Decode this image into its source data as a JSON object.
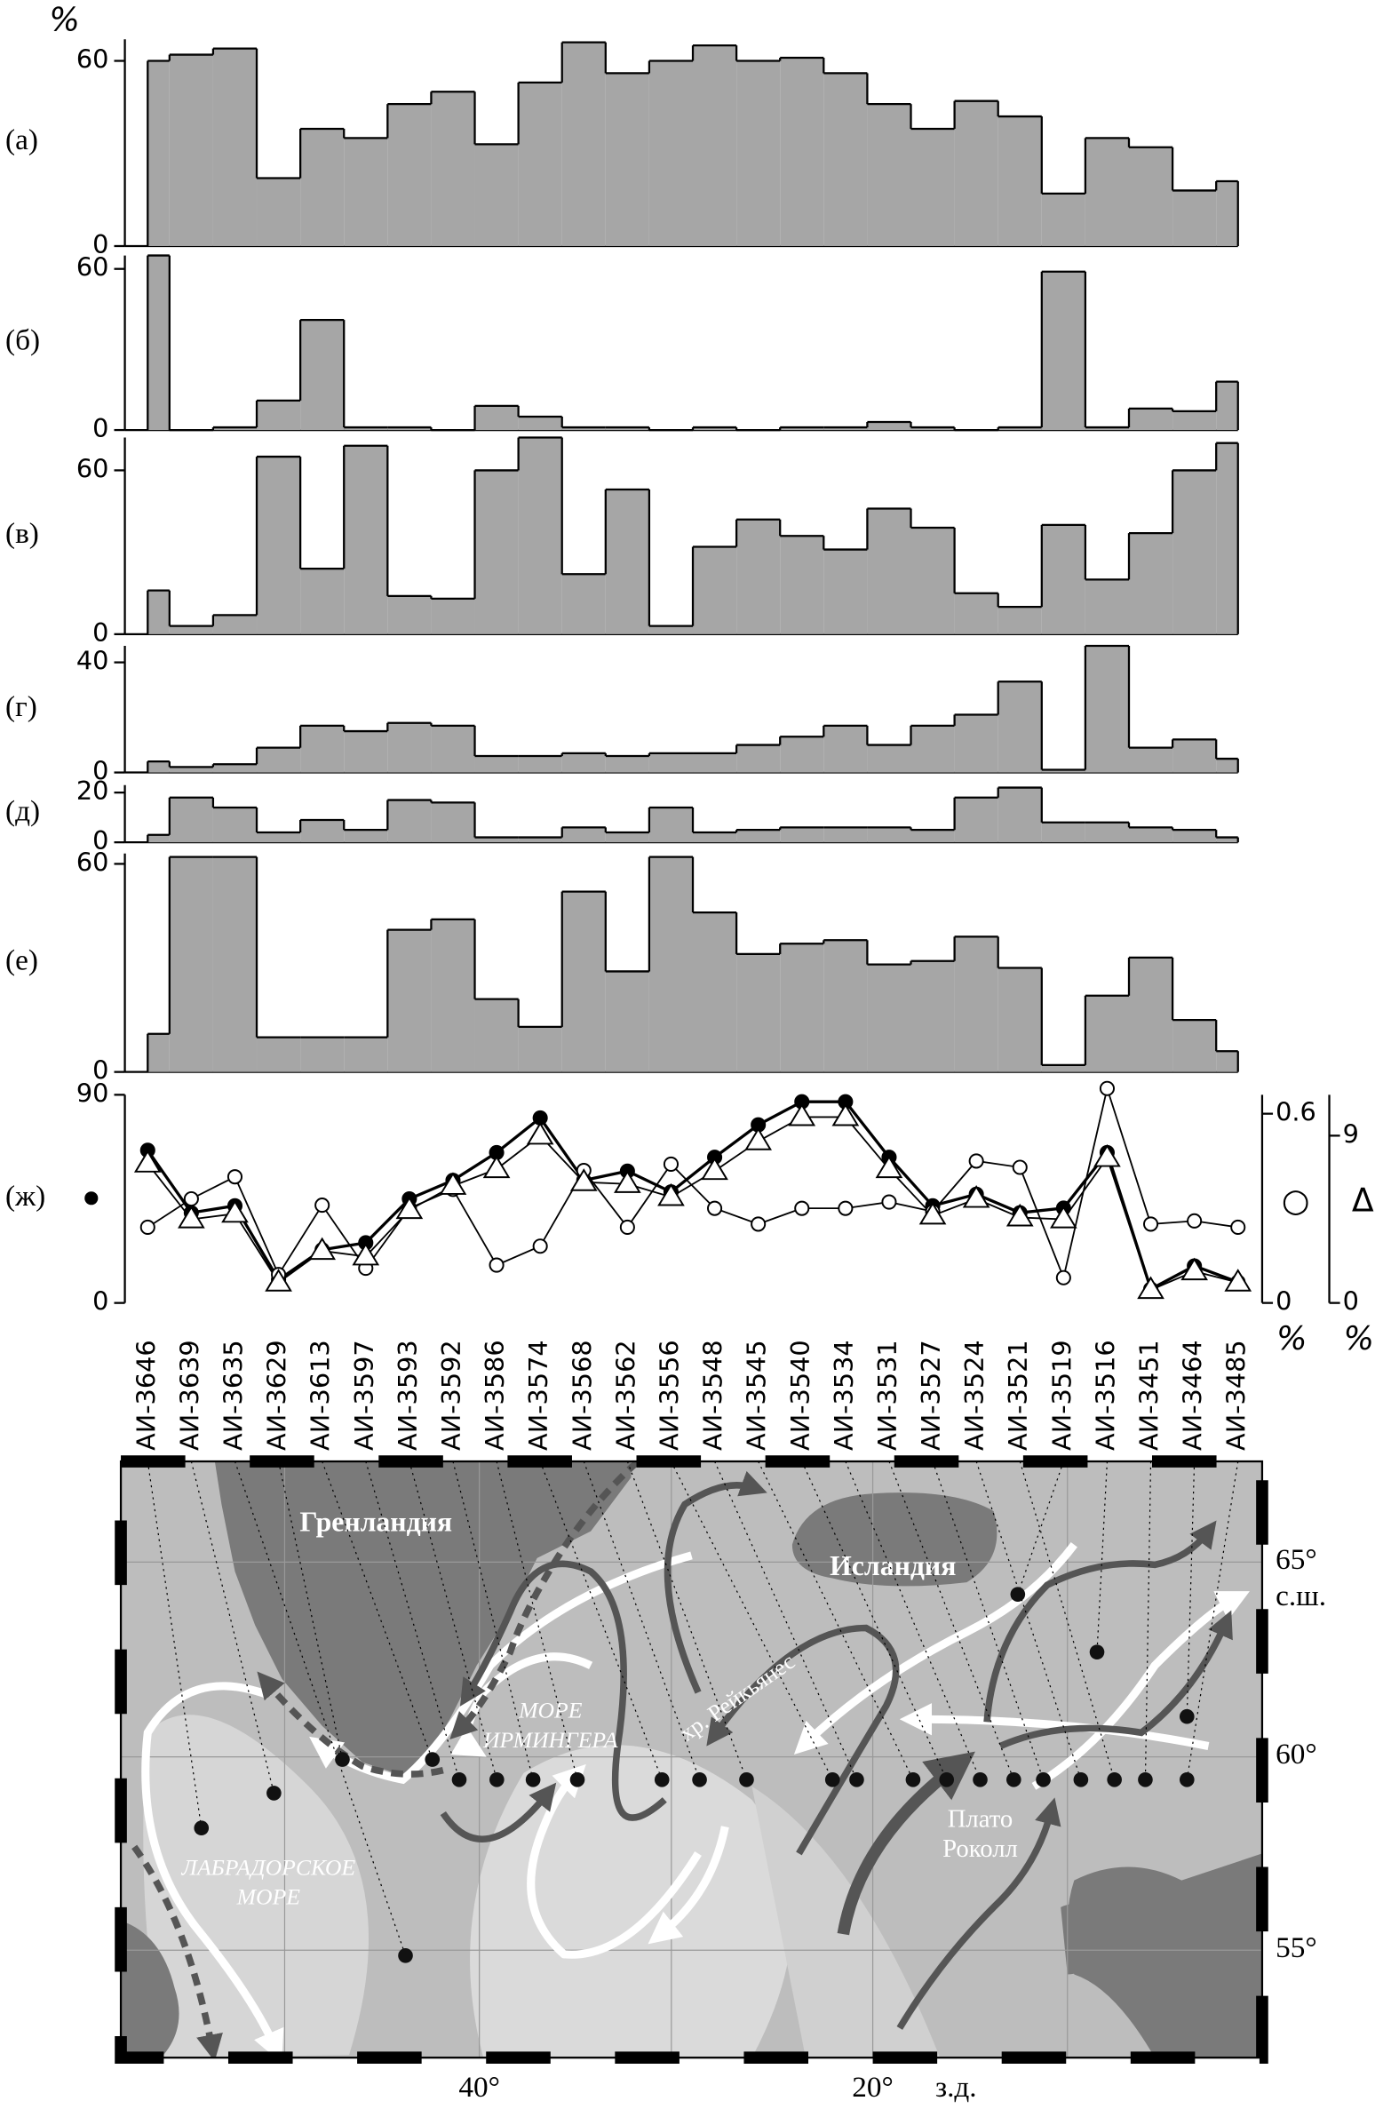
{
  "chart_data": [
    {
      "type": "bar",
      "label": "(а)",
      "unit": "%",
      "color": "#a6a6a6",
      "ylim": [
        0,
        67
      ],
      "yticks": [
        0,
        60
      ],
      "values": [
        60,
        62,
        64,
        22,
        38,
        35,
        46,
        50,
        33,
        53,
        66,
        56,
        60,
        65,
        60,
        61,
        56,
        46,
        38,
        47,
        42,
        17,
        35,
        32,
        18,
        21
      ]
    },
    {
      "type": "bar",
      "label": "(б)",
      "color": "#a6a6a6",
      "ylim": [
        0,
        65
      ],
      "yticks": [
        0,
        60
      ],
      "values": [
        65,
        0,
        1,
        11,
        41,
        1,
        1,
        0,
        9,
        5,
        1,
        1,
        0,
        1,
        0,
        1,
        1,
        3,
        1,
        0,
        1,
        59,
        1,
        8,
        7,
        18
      ]
    },
    {
      "type": "bar",
      "label": "(в)",
      "color": "#a6a6a6",
      "ylim": [
        0,
        72
      ],
      "yticks": [
        0,
        60
      ],
      "values": [
        16,
        3,
        7,
        65,
        24,
        69,
        14,
        13,
        60,
        72,
        22,
        53,
        3,
        32,
        42,
        36,
        31,
        46,
        39,
        15,
        10,
        40,
        20,
        37,
        60,
        70
      ]
    },
    {
      "type": "bar",
      "label": "(г)",
      "color": "#a6a6a6",
      "ylim": [
        0,
        46
      ],
      "yticks": [
        0,
        40
      ],
      "values": [
        4,
        2,
        3,
        9,
        17,
        15,
        18,
        17,
        6,
        6,
        7,
        6,
        7,
        7,
        10,
        13,
        17,
        10,
        17,
        21,
        33,
        1,
        46,
        9,
        12,
        5
      ]
    },
    {
      "type": "bar",
      "label": "(д)",
      "color": "#a6a6a6",
      "ylim": [
        0,
        23
      ],
      "yticks": [
        0,
        20
      ],
      "values": [
        3,
        18,
        14,
        4,
        9,
        5,
        17,
        16,
        2,
        2,
        6,
        4,
        14,
        4,
        5,
        6,
        6,
        6,
        5,
        18,
        22,
        8,
        8,
        6,
        5,
        2
      ]
    },
    {
      "type": "bar",
      "label": "(е)",
      "color": "#a6a6a6",
      "ylim": [
        0,
        63
      ],
      "yticks": [
        0,
        60
      ],
      "values": [
        11,
        62,
        62,
        10,
        10,
        10,
        41,
        44,
        21,
        13,
        52,
        29,
        62,
        46,
        34,
        37,
        38,
        31,
        32,
        39,
        30,
        2,
        22,
        33,
        15,
        6
      ]
    },
    {
      "type": "line",
      "label": "(ж)",
      "categories": [
        "АИ-3646",
        "АИ-3639",
        "АИ-3635",
        "АИ-3629",
        "АИ-3613",
        "АИ-3597",
        "АИ-3593",
        "АИ-3592",
        "АИ-3586",
        "АИ-3574",
        "АИ-3568",
        "АИ-3562",
        "АИ-3556",
        "АИ-3548",
        "АИ-3545",
        "АИ-3540",
        "АИ-3534",
        "АИ-3531",
        "АИ-3527",
        "АИ-3524",
        "АИ-3521",
        "АИ-3519",
        "АИ-3516",
        "АИ-3451",
        "АИ-3464",
        "АИ-3485"
      ],
      "ylim": [
        0,
        90
      ],
      "yticks": [
        0,
        90
      ],
      "y2lim": [
        0,
        0.66
      ],
      "y2ticks": [
        0,
        0.6
      ],
      "y3lim": [
        0,
        11.2
      ],
      "y3ticks": [
        0,
        9
      ],
      "series": [
        {
          "color": "#000000",
          "marker": "filled-circle",
          "values": [
            66,
            39,
            42,
            10,
            23,
            26,
            45,
            53,
            65,
            80,
            53,
            57,
            48,
            63,
            77,
            87,
            87,
            63,
            42,
            47,
            39,
            41,
            65,
            6,
            16,
            9
          ]
        },
        {
          "name": "○",
          "unit": "%",
          "axis": "y2",
          "color": "#000000",
          "marker": "open-circle",
          "values": [
            0.24,
            0.33,
            0.4,
            0.09,
            0.31,
            0.11,
            0.3,
            0.36,
            0.12,
            0.18,
            0.42,
            0.24,
            0.44,
            0.3,
            0.25,
            0.3,
            0.3,
            0.32,
            0.29,
            0.45,
            0.43,
            0.08,
            0.68,
            0.25,
            0.26,
            0.24
          ]
        },
        {
          "name": "Δ",
          "unit": "%",
          "axis": "y3",
          "color": "#000000",
          "marker": "triangle",
          "values": [
            7.5,
            4.5,
            4.8,
            1.1,
            2.8,
            2.5,
            5.0,
            6.3,
            7.2,
            9.0,
            6.5,
            6.4,
            5.7,
            7.1,
            8.7,
            10.0,
            10.0,
            7.2,
            4.7,
            5.6,
            4.6,
            4.5,
            7.8,
            0.7,
            1.7,
            1.1
          ]
        }
      ]
    }
  ],
  "map": {
    "greenland": "Гренландия",
    "iceland": "Исландия",
    "irminger": [
      "МОРЕ",
      "ИРМИНГЕРА"
    ],
    "reykjanes": "хр. Рейкьянес",
    "rockall": [
      "Плато",
      "Роколл"
    ],
    "labrador": [
      "ЛАБРАДОРСКОЕ",
      "МОРЕ"
    ],
    "latitudes": [
      "65°",
      "60°",
      "55°"
    ],
    "lat_unit": "с.ш.",
    "longitudes": [
      "40°",
      "20°"
    ],
    "lon_unit": "з.д."
  }
}
